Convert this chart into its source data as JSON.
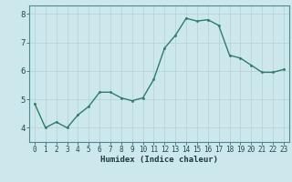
{
  "x": [
    0,
    1,
    2,
    3,
    4,
    5,
    6,
    7,
    8,
    9,
    10,
    11,
    12,
    13,
    14,
    15,
    16,
    17,
    18,
    19,
    20,
    21,
    22,
    23
  ],
  "y": [
    4.85,
    4.0,
    4.2,
    4.0,
    4.45,
    4.75,
    5.25,
    5.25,
    5.05,
    4.95,
    5.05,
    5.7,
    6.8,
    7.25,
    7.85,
    7.75,
    7.8,
    7.6,
    6.55,
    6.45,
    6.2,
    5.95,
    5.95,
    6.05
  ],
  "xlabel": "Humidex (Indice chaleur)",
  "ylim": [
    3.5,
    8.3
  ],
  "xlim": [
    -0.5,
    23.5
  ],
  "yticks": [
    4,
    5,
    6,
    7,
    8
  ],
  "xticks": [
    0,
    1,
    2,
    3,
    4,
    5,
    6,
    7,
    8,
    9,
    10,
    11,
    12,
    13,
    14,
    15,
    16,
    17,
    18,
    19,
    20,
    21,
    22,
    23
  ],
  "line_color": "#2d7d6b",
  "marker_color": "#2d7d6b",
  "bg_color": "#cde8ec",
  "grid_color": "#b8d4d8",
  "axis_color": "#4a8a90",
  "tick_label_color": "#1a4a50",
  "xlabel_color": "#1a3a40"
}
